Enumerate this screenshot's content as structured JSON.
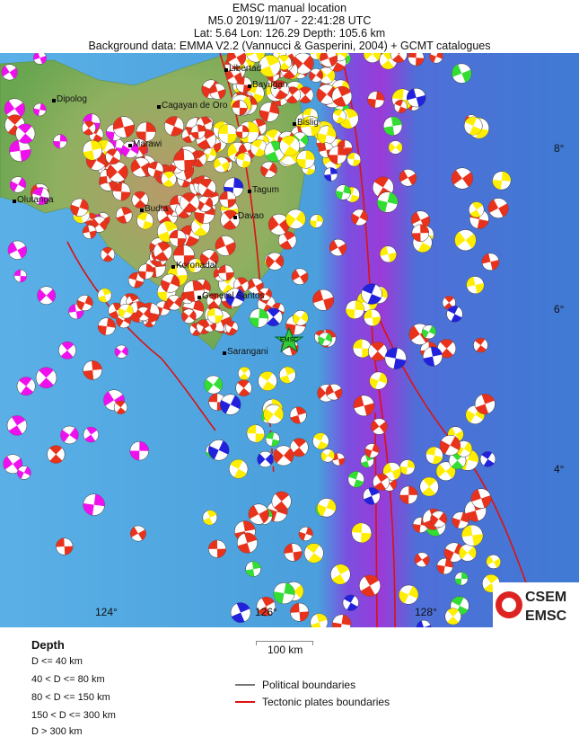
{
  "header": {
    "line1": "EMSC manual location",
    "line2": "M5.0  2019/11/07 - 22:41:28 UTC",
    "line3": "Lat:  5.64    Lon: 126.29      Depth: 105.6 km",
    "line4": "Background data: EMMA V2.2 (Vannucci & Gasperini, 2004) + GCMT catalogues"
  },
  "map": {
    "cities": [
      "Dipolog",
      "Cagayan de Oro",
      "Marawi",
      "Olutanga",
      "Budta",
      "Koronadal",
      "General Santos",
      "Sarangani",
      "Davao",
      "Tagum",
      "Bislig",
      "Bayugan",
      "Libertad"
    ],
    "epicenter_label": "EMSC",
    "lat_labels": [
      "8°",
      "6°",
      "4°"
    ],
    "lon_labels": [
      "124°",
      "126°",
      "128°"
    ],
    "logo": {
      "top": "CSEM",
      "bottom": "EMSC"
    },
    "colors": {
      "ocean": "#4fa3dc",
      "trench": "#8a2be2",
      "land": "#7fae5a",
      "tectonic": "#dd1111",
      "political": "#777777"
    },
    "depth_colors": [
      "#e8321c",
      "#ffee00",
      "#33dd33",
      "#2222dd",
      "#ee11ee"
    ]
  },
  "legend": {
    "depth_title": "Depth",
    "depth_classes": [
      "D <= 40 km",
      "40 < D <= 80 km",
      "80 < D <= 150 km",
      "150 < D <= 300 km",
      "D > 300 km"
    ],
    "scale": "100 km",
    "political": "Political boundaries",
    "tectonic": "Tectonic plates boundaries"
  }
}
